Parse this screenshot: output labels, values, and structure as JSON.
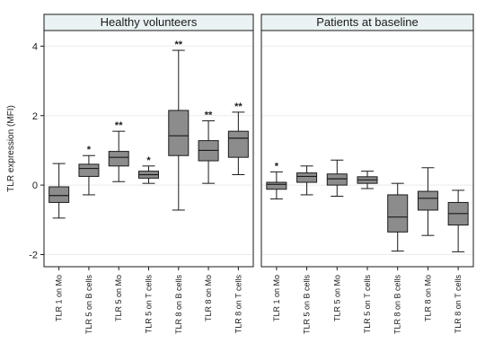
{
  "chart_data": {
    "type": "boxplot",
    "ylabel": "TLR expression (MFI)",
    "ylim": [
      -2.35,
      4.45
    ],
    "yticks": [
      -2,
      0,
      2,
      4
    ],
    "grid": true,
    "categories": [
      "TLR 1 on Mo",
      "TLR 5 on B cells",
      "TLR 5 on Mo",
      "TLR 5 on T cells",
      "TLR 8 on B cells",
      "TLR 8 on Mo",
      "TLR 8 on T cells"
    ],
    "panels": [
      {
        "title": "Healthy volunteers",
        "boxes": [
          {
            "category": "TLR 1 on Mo",
            "min": -0.95,
            "q1": -0.5,
            "median": -0.3,
            "q3": -0.05,
            "max": 0.62,
            "significance": ""
          },
          {
            "category": "TLR 5 on B cells",
            "min": -0.28,
            "q1": 0.25,
            "median": 0.48,
            "q3": 0.6,
            "max": 0.85,
            "significance": "*"
          },
          {
            "category": "TLR 5 on Mo",
            "min": 0.1,
            "q1": 0.55,
            "median": 0.8,
            "q3": 0.97,
            "max": 1.55,
            "significance": "**"
          },
          {
            "category": "TLR 5 on T cells",
            "min": 0.05,
            "q1": 0.2,
            "median": 0.3,
            "q3": 0.4,
            "max": 0.55,
            "significance": "*"
          },
          {
            "category": "TLR 8 on B cells",
            "min": -0.72,
            "q1": 0.85,
            "median": 1.42,
            "q3": 2.15,
            "max": 3.88,
            "significance": "**"
          },
          {
            "category": "TLR 8 on Mo",
            "min": 0.05,
            "q1": 0.7,
            "median": 1.0,
            "q3": 1.28,
            "max": 1.85,
            "significance": "**"
          },
          {
            "category": "TLR 8 on T cells",
            "min": 0.3,
            "q1": 0.8,
            "median": 1.35,
            "q3": 1.55,
            "max": 2.1,
            "significance": "**"
          }
        ]
      },
      {
        "title": "Patients at baseline",
        "boxes": [
          {
            "category": "TLR 1 on Mo",
            "min": -0.4,
            "q1": -0.12,
            "median": 0.02,
            "q3": 0.08,
            "max": 0.38,
            "significance": "*"
          },
          {
            "category": "TLR 5 on B cells",
            "min": -0.28,
            "q1": 0.08,
            "median": 0.25,
            "q3": 0.35,
            "max": 0.55,
            "significance": ""
          },
          {
            "category": "TLR 5 on Mo",
            "min": -0.32,
            "q1": 0.0,
            "median": 0.18,
            "q3": 0.32,
            "max": 0.72,
            "significance": ""
          },
          {
            "category": "TLR 5 on T cells",
            "min": -0.1,
            "q1": 0.05,
            "median": 0.15,
            "q3": 0.24,
            "max": 0.4,
            "significance": ""
          },
          {
            "category": "TLR 8 on B cells",
            "min": -1.9,
            "q1": -1.35,
            "median": -0.92,
            "q3": -0.28,
            "max": 0.05,
            "significance": ""
          },
          {
            "category": "TLR 8 on Mo",
            "min": -1.45,
            "q1": -0.72,
            "median": -0.38,
            "q3": -0.18,
            "max": 0.5,
            "significance": ""
          },
          {
            "category": "TLR 8 on T cells",
            "min": -1.92,
            "q1": -1.15,
            "median": -0.82,
            "q3": -0.5,
            "max": -0.15,
            "significance": ""
          }
        ]
      }
    ],
    "colors": {
      "box_fill": "#8c8c8c",
      "strip_fill": "#eaf2f3",
      "grid": "#e8ecee",
      "line": "#1a1a1a"
    }
  }
}
